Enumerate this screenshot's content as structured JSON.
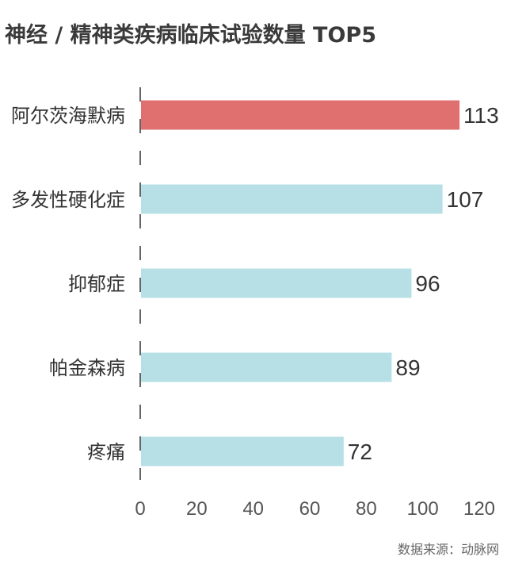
{
  "title": "神经 / 精神类疾病临床试验数量 TOP5",
  "source": "数据来源：动脉网",
  "colors": {
    "highlight": "#e07070",
    "normal": "#b7e0e6",
    "axis": "#333333"
  },
  "chart_data": {
    "type": "bar",
    "orientation": "horizontal",
    "title": "神经 / 精神类疾病临床试验数量 TOP5",
    "categories": [
      "阿尔茨海默病",
      "多发性硬化症",
      "抑郁症",
      "帕金森病",
      "疼痛"
    ],
    "values": [
      113,
      107,
      96,
      89,
      72
    ],
    "xlim": [
      0,
      120
    ],
    "xticks": [
      0,
      20,
      40,
      60,
      80,
      100,
      120
    ],
    "highlighted_category": "阿尔茨海默病",
    "grid": false,
    "legend": "none"
  }
}
